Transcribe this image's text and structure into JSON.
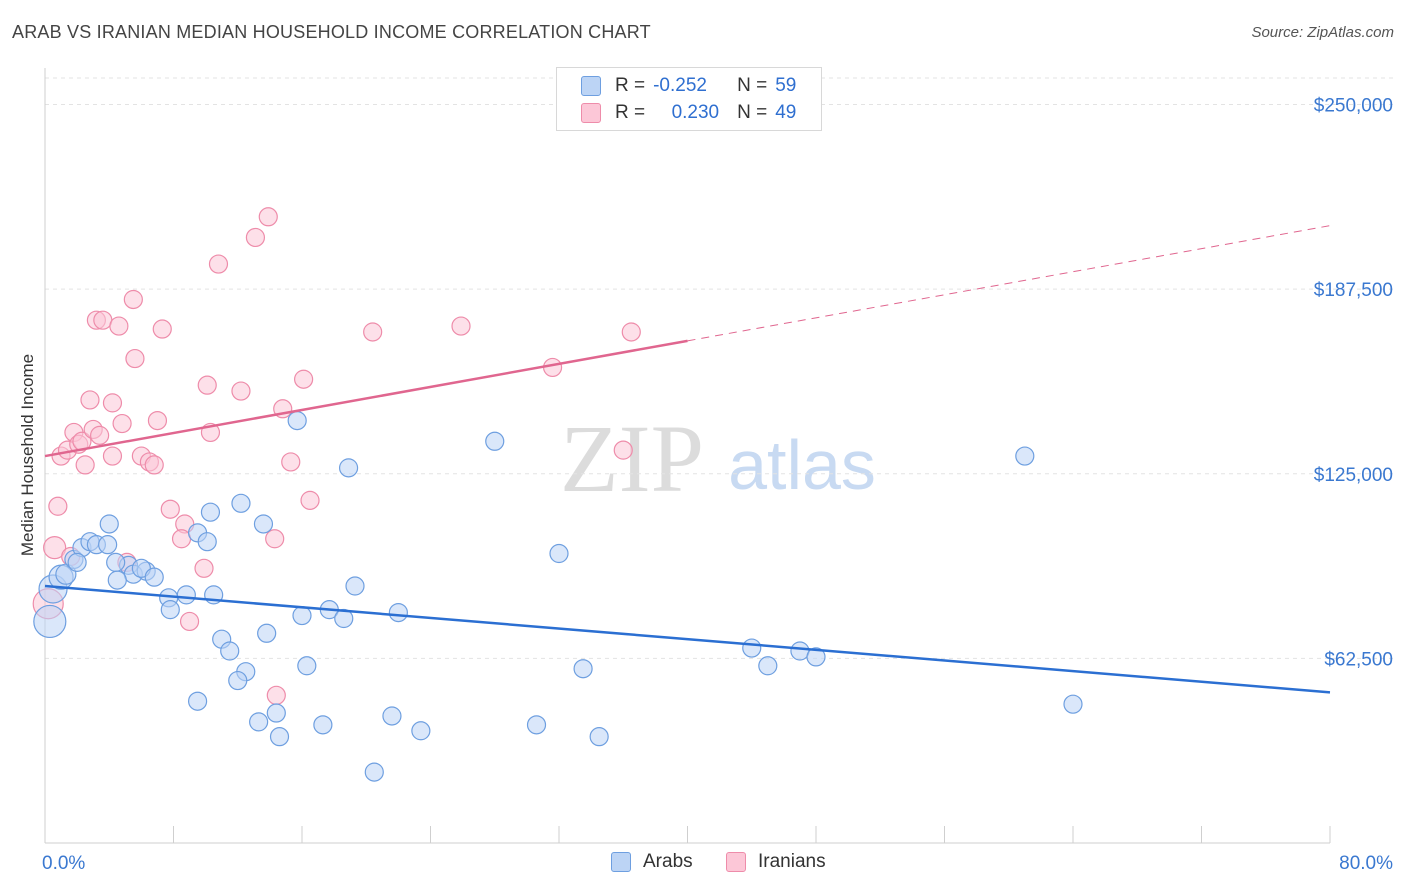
{
  "title": "ARAB VS IRANIAN MEDIAN HOUSEHOLD INCOME CORRELATION CHART",
  "source": "Source: ZipAtlas.com",
  "watermark": {
    "zip": "ZIP",
    "atlas": "atlas"
  },
  "legend_top": {
    "rows": [
      {
        "r_label": "R =",
        "r_value": "-0.252",
        "n_label": "N =",
        "n_value": "59"
      },
      {
        "r_label": "R =",
        "r_value": "0.230",
        "n_label": "N =",
        "n_value": "49"
      }
    ]
  },
  "legend_bottom": {
    "arabs": "Arabs",
    "iranians": "Iranians"
  },
  "colors": {
    "arabs_fill": "#bcd4f5",
    "arabs_stroke": "#6e9fe0",
    "arabs_line": "#2b6fd2",
    "iranians_fill": "#fcc7d7",
    "iranians_stroke": "#ee8caa",
    "iranians_line": "#e0668f",
    "axis_text": "#3a78d0",
    "grid": "#e3e3e3"
  },
  "chart_data": {
    "type": "scatter",
    "title": "ARAB VS IRANIAN MEDIAN HOUSEHOLD INCOME CORRELATION CHART",
    "xlabel": "",
    "ylabel": "Median Household Income",
    "xlim": [
      0,
      80
    ],
    "ylim": [
      0,
      260000
    ],
    "x_tick_labels": [
      "0.0%",
      "80.0%"
    ],
    "y_ticks": [
      62500,
      125000,
      187500,
      250000
    ],
    "y_tick_labels": [
      "$62,500",
      "$125,000",
      "$187,500",
      "$250,000"
    ],
    "series": [
      {
        "name": "Arabs",
        "r": -0.252,
        "n": 59,
        "trend": {
          "x0": 0,
          "y0": 87000,
          "x1": 80,
          "y1": 51000,
          "dash_from": null
        },
        "points": [
          [
            0.3,
            75000,
            16
          ],
          [
            0.5,
            86000,
            14
          ],
          [
            1.0,
            90000,
            12
          ],
          [
            1.3,
            91000,
            10
          ],
          [
            1.8,
            96000,
            9
          ],
          [
            2.3,
            100000,
            9
          ],
          [
            2.8,
            102000,
            9
          ],
          [
            3.2,
            101000,
            9
          ],
          [
            2.0,
            95000,
            9
          ],
          [
            4.0,
            108000,
            9
          ],
          [
            3.9,
            101000,
            9
          ],
          [
            5.2,
            94000,
            9
          ],
          [
            5.5,
            91000,
            9
          ],
          [
            4.4,
            95000,
            9
          ],
          [
            4.5,
            89000,
            9
          ],
          [
            6.3,
            92000,
            9
          ],
          [
            6.0,
            93000,
            9
          ],
          [
            6.8,
            90000,
            9
          ],
          [
            7.7,
            83000,
            9
          ],
          [
            7.8,
            79000,
            9
          ],
          [
            8.8,
            84000,
            9
          ],
          [
            9.5,
            105000,
            9
          ],
          [
            10.3,
            112000,
            9
          ],
          [
            10.1,
            102000,
            9
          ],
          [
            10.5,
            84000,
            9
          ],
          [
            12.2,
            115000,
            9
          ],
          [
            13.6,
            108000,
            9
          ],
          [
            13.8,
            71000,
            9
          ],
          [
            11.0,
            69000,
            9
          ],
          [
            11.5,
            65000,
            9
          ],
          [
            12.5,
            58000,
            9
          ],
          [
            12.0,
            55000,
            9
          ],
          [
            9.5,
            48000,
            9
          ],
          [
            13.3,
            41000,
            9
          ],
          [
            14.4,
            44000,
            9
          ],
          [
            14.6,
            36000,
            9
          ],
          [
            16.3,
            60000,
            9
          ],
          [
            16.0,
            77000,
            9
          ],
          [
            17.3,
            40000,
            9
          ],
          [
            17.7,
            79000,
            9
          ],
          [
            18.6,
            76000,
            9
          ],
          [
            18.9,
            127000,
            9
          ],
          [
            19.3,
            87000,
            9
          ],
          [
            20.5,
            24000,
            9
          ],
          [
            21.6,
            43000,
            9
          ],
          [
            22.0,
            78000,
            9
          ],
          [
            23.4,
            38000,
            9
          ],
          [
            15.7,
            143000,
            9
          ],
          [
            28.0,
            136000,
            9
          ],
          [
            30.6,
            40000,
            9
          ],
          [
            32.0,
            98000,
            9
          ],
          [
            33.5,
            59000,
            9
          ],
          [
            34.5,
            36000,
            9
          ],
          [
            44.0,
            66000,
            9
          ],
          [
            45.0,
            60000,
            9
          ],
          [
            47.0,
            65000,
            9
          ],
          [
            48.0,
            63000,
            9
          ],
          [
            61.0,
            131000,
            9
          ],
          [
            64.0,
            47000,
            9
          ]
        ]
      },
      {
        "name": "Iranians",
        "r": 0.23,
        "n": 49,
        "trend": {
          "x0": 0,
          "y0": 131000,
          "x1": 80,
          "y1": 209000,
          "dash_from": 40
        },
        "points": [
          [
            0.2,
            81000,
            15
          ],
          [
            0.6,
            100000,
            11
          ],
          [
            0.8,
            114000,
            9
          ],
          [
            1.0,
            131000,
            9
          ],
          [
            1.4,
            133000,
            9
          ],
          [
            1.6,
            97000,
            9
          ],
          [
            1.8,
            139000,
            9
          ],
          [
            2.1,
            135000,
            9
          ],
          [
            2.3,
            136000,
            9
          ],
          [
            2.5,
            128000,
            9
          ],
          [
            2.8,
            150000,
            9
          ],
          [
            3.0,
            140000,
            9
          ],
          [
            3.2,
            177000,
            9
          ],
          [
            3.4,
            138000,
            9
          ],
          [
            3.6,
            177000,
            9
          ],
          [
            4.2,
            149000,
            9
          ],
          [
            4.2,
            131000,
            9
          ],
          [
            4.6,
            175000,
            9
          ],
          [
            4.8,
            142000,
            9
          ],
          [
            5.1,
            95000,
            9
          ],
          [
            5.5,
            184000,
            9
          ],
          [
            5.6,
            164000,
            9
          ],
          [
            6.0,
            131000,
            9
          ],
          [
            6.5,
            129000,
            9
          ],
          [
            6.8,
            128000,
            9
          ],
          [
            7.0,
            143000,
            9
          ],
          [
            7.3,
            174000,
            9
          ],
          [
            7.8,
            113000,
            9
          ],
          [
            8.7,
            108000,
            9
          ],
          [
            8.5,
            103000,
            9
          ],
          [
            9.0,
            75000,
            9
          ],
          [
            9.9,
            93000,
            9
          ],
          [
            10.1,
            155000,
            9
          ],
          [
            10.3,
            139000,
            9
          ],
          [
            10.8,
            196000,
            9
          ],
          [
            12.2,
            153000,
            9
          ],
          [
            13.1,
            205000,
            9
          ],
          [
            13.9,
            212000,
            9
          ],
          [
            14.3,
            103000,
            9
          ],
          [
            14.4,
            50000,
            9
          ],
          [
            14.8,
            147000,
            9
          ],
          [
            15.3,
            129000,
            9
          ],
          [
            16.1,
            157000,
            9
          ],
          [
            16.5,
            116000,
            9
          ],
          [
            20.4,
            173000,
            9
          ],
          [
            25.9,
            175000,
            9
          ],
          [
            31.6,
            161000,
            9
          ],
          [
            36.0,
            133000,
            9
          ],
          [
            36.5,
            173000,
            9
          ]
        ]
      }
    ]
  }
}
